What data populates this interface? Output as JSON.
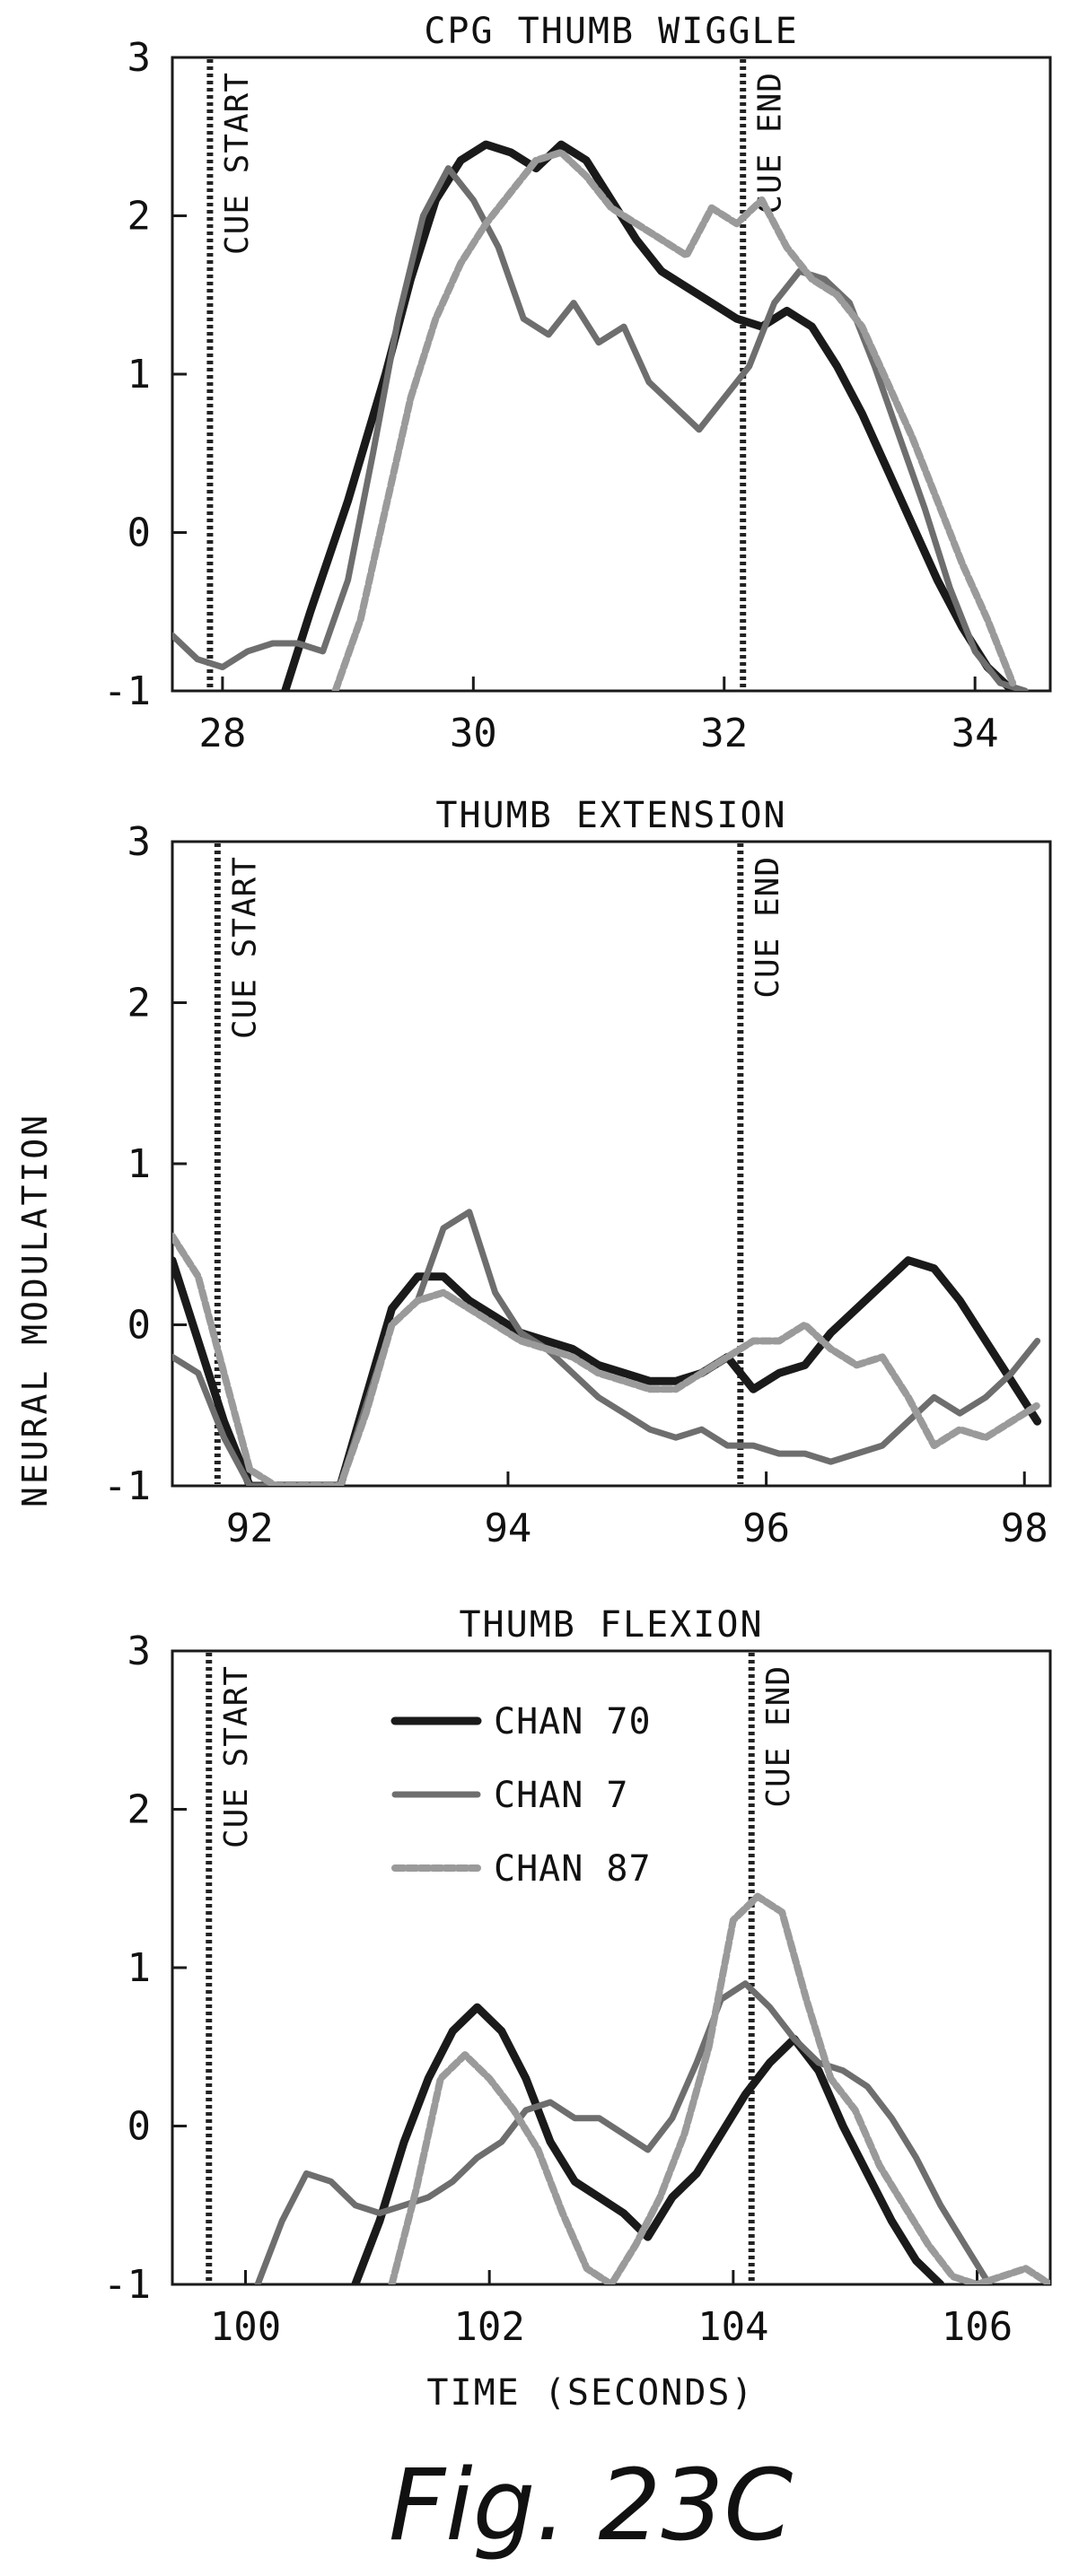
{
  "figure": {
    "caption": "Fig. 23C",
    "ylabel": "NEURAL MODULATION",
    "xlabel": "TIME (SECONDS)"
  },
  "legend": [
    {
      "name": "CHAN 70",
      "color": "#1a1a1a"
    },
    {
      "name": "CHAN 7",
      "color": "#6e6e6e"
    },
    {
      "name": "CHAN 87",
      "color": "#9a9a9a"
    }
  ],
  "chart_data": [
    {
      "type": "line",
      "title": "CPG THUMB WIGGLE",
      "xlim": [
        27.6,
        34.6
      ],
      "ylim": [
        -1,
        3
      ],
      "xticks": [
        28,
        30,
        32,
        34
      ],
      "yticks": [
        -1,
        0,
        1,
        2,
        3
      ],
      "cue_start": 27.9,
      "cue_end": 32.15,
      "cue_start_label": "CUE START",
      "cue_end_label": "CUE END",
      "series": [
        {
          "name": "CHAN 70",
          "color": "#1a1a1a",
          "x": [
            28.5,
            28.7,
            29.0,
            29.3,
            29.5,
            29.7,
            29.9,
            30.1,
            30.3,
            30.5,
            30.7,
            30.9,
            31.1,
            31.3,
            31.5,
            31.7,
            31.9,
            32.1,
            32.3,
            32.5,
            32.7,
            32.9,
            33.1,
            33.3,
            33.5,
            33.7,
            33.9,
            34.1,
            34.3
          ],
          "y": [
            -1,
            -0.5,
            0.2,
            1.0,
            1.6,
            2.1,
            2.35,
            2.45,
            2.4,
            2.3,
            2.45,
            2.35,
            2.1,
            1.85,
            1.65,
            1.55,
            1.45,
            1.35,
            1.3,
            1.4,
            1.3,
            1.05,
            0.75,
            0.4,
            0.05,
            -0.3,
            -0.6,
            -0.85,
            -1
          ]
        },
        {
          "name": "CHAN 7",
          "color": "#6e6e6e",
          "x": [
            27.6,
            27.8,
            28.0,
            28.2,
            28.4,
            28.6,
            28.8,
            29.0,
            29.2,
            29.4,
            29.6,
            29.8,
            30.0,
            30.2,
            30.4,
            30.6,
            30.8,
            31.0,
            31.2,
            31.4,
            31.6,
            31.8,
            32.0,
            32.2,
            32.4,
            32.6,
            32.8,
            33.0,
            33.2,
            33.4,
            33.6,
            33.8,
            34.0,
            34.2,
            34.4
          ],
          "y": [
            -0.65,
            -0.8,
            -0.85,
            -0.75,
            -0.7,
            -0.7,
            -0.75,
            -0.3,
            0.5,
            1.35,
            2.0,
            2.3,
            2.1,
            1.8,
            1.35,
            1.25,
            1.45,
            1.2,
            1.3,
            0.95,
            0.8,
            0.65,
            0.85,
            1.05,
            1.45,
            1.65,
            1.6,
            1.45,
            1.05,
            0.6,
            0.15,
            -0.35,
            -0.75,
            -0.95,
            -1
          ]
        },
        {
          "name": "CHAN 87",
          "color": "#9a9a9a",
          "x": [
            28.9,
            29.1,
            29.3,
            29.5,
            29.7,
            29.9,
            30.1,
            30.3,
            30.5,
            30.7,
            30.9,
            31.1,
            31.3,
            31.5,
            31.7,
            31.9,
            32.1,
            32.3,
            32.5,
            32.7,
            32.9,
            33.1,
            33.3,
            33.5,
            33.7,
            33.9,
            34.1,
            34.3
          ],
          "y": [
            -1,
            -0.55,
            0.15,
            0.85,
            1.35,
            1.7,
            1.95,
            2.15,
            2.35,
            2.4,
            2.25,
            2.05,
            1.95,
            1.85,
            1.75,
            2.05,
            1.95,
            2.1,
            1.8,
            1.6,
            1.5,
            1.3,
            0.95,
            0.6,
            0.2,
            -0.2,
            -0.55,
            -0.95
          ]
        }
      ]
    },
    {
      "type": "line",
      "title": "THUMB EXTENSION",
      "xlim": [
        91.4,
        98.2
      ],
      "ylim": [
        -1,
        3
      ],
      "xticks": [
        92,
        94,
        96,
        98
      ],
      "yticks": [
        -1,
        0,
        1,
        2,
        3
      ],
      "cue_start": 91.75,
      "cue_end": 95.8,
      "cue_start_label": "CUE START",
      "cue_end_label": "CUE END",
      "series": [
        {
          "name": "CHAN 70",
          "color": "#1a1a1a",
          "x": [
            91.4,
            91.6,
            91.8,
            92.0,
            92.7,
            92.9,
            93.1,
            93.3,
            93.5,
            93.7,
            93.9,
            94.1,
            94.3,
            94.5,
            94.7,
            94.9,
            95.1,
            95.3,
            95.5,
            95.7,
            95.9,
            96.1,
            96.3,
            96.5,
            96.7,
            96.9,
            97.1,
            97.3,
            97.5,
            97.7,
            97.9,
            98.1
          ],
          "y": [
            0.4,
            -0.1,
            -0.6,
            -1,
            -1,
            -0.45,
            0.1,
            0.3,
            0.3,
            0.15,
            0.05,
            -0.05,
            -0.1,
            -0.15,
            -0.25,
            -0.3,
            -0.35,
            -0.35,
            -0.3,
            -0.2,
            -0.4,
            -0.3,
            -0.25,
            -0.05,
            0.1,
            0.25,
            0.4,
            0.35,
            0.15,
            -0.1,
            -0.35,
            -0.6
          ]
        },
        {
          "name": "CHAN 7",
          "color": "#6e6e6e",
          "x": [
            91.4,
            91.6,
            91.8,
            92.0,
            92.7,
            92.9,
            93.1,
            93.3,
            93.5,
            93.7,
            93.9,
            94.1,
            94.3,
            94.5,
            94.7,
            94.9,
            95.1,
            95.3,
            95.5,
            95.7,
            95.9,
            96.1,
            96.3,
            96.5,
            96.7,
            96.9,
            97.1,
            97.3,
            97.5,
            97.7,
            97.9,
            98.1
          ],
          "y": [
            -0.2,
            -0.3,
            -0.7,
            -1,
            -1,
            -0.5,
            0.0,
            0.15,
            0.6,
            0.7,
            0.2,
            -0.05,
            -0.15,
            -0.3,
            -0.45,
            -0.55,
            -0.65,
            -0.7,
            -0.65,
            -0.75,
            -0.75,
            -0.8,
            -0.8,
            -0.85,
            -0.8,
            -0.75,
            -0.6,
            -0.45,
            -0.55,
            -0.45,
            -0.3,
            -0.1
          ]
        },
        {
          "name": "CHAN 87",
          "color": "#9a9a9a",
          "x": [
            91.4,
            91.6,
            91.8,
            92.0,
            92.2,
            92.7,
            92.9,
            93.1,
            93.3,
            93.5,
            93.7,
            93.9,
            94.1,
            94.3,
            94.5,
            94.7,
            94.9,
            95.1,
            95.3,
            95.5,
            95.7,
            95.9,
            96.1,
            96.3,
            96.5,
            96.7,
            96.9,
            97.1,
            97.3,
            97.5,
            97.7,
            97.9,
            98.1
          ],
          "y": [
            0.55,
            0.3,
            -0.3,
            -0.9,
            -1,
            -1,
            -0.55,
            0.0,
            0.15,
            0.2,
            0.1,
            0.0,
            -0.1,
            -0.15,
            -0.2,
            -0.3,
            -0.35,
            -0.4,
            -0.4,
            -0.3,
            -0.2,
            -0.1,
            -0.1,
            0.0,
            -0.15,
            -0.25,
            -0.2,
            -0.45,
            -0.75,
            -0.65,
            -0.7,
            -0.6,
            -0.5
          ]
        }
      ]
    },
    {
      "type": "line",
      "title": "THUMB FLEXION",
      "xlim": [
        99.4,
        106.6
      ],
      "ylim": [
        -1,
        3
      ],
      "xticks": [
        100,
        102,
        104,
        106
      ],
      "yticks": [
        -1,
        0,
        1,
        2,
        3
      ],
      "cue_start": 99.7,
      "cue_end": 104.15,
      "cue_start_label": "CUE START",
      "cue_end_label": "CUE END",
      "series": [
        {
          "name": "CHAN 70",
          "color": "#1a1a1a",
          "x": [
            100.9,
            101.1,
            101.3,
            101.5,
            101.7,
            101.9,
            102.1,
            102.3,
            102.5,
            102.7,
            102.9,
            103.1,
            103.3,
            103.5,
            103.7,
            103.9,
            104.1,
            104.3,
            104.5,
            104.7,
            104.9,
            105.1,
            105.3,
            105.5,
            105.7
          ],
          "y": [
            -1,
            -0.6,
            -0.1,
            0.3,
            0.6,
            0.75,
            0.6,
            0.3,
            -0.1,
            -0.35,
            -0.45,
            -0.55,
            -0.7,
            -0.45,
            -0.3,
            -0.05,
            0.2,
            0.4,
            0.55,
            0.35,
            0.0,
            -0.3,
            -0.6,
            -0.85,
            -1
          ]
        },
        {
          "name": "CHAN 7",
          "color": "#6e6e6e",
          "x": [
            100.1,
            100.3,
            100.5,
            100.7,
            100.9,
            101.1,
            101.3,
            101.5,
            101.7,
            101.9,
            102.1,
            102.3,
            102.5,
            102.7,
            102.9,
            103.1,
            103.3,
            103.5,
            103.7,
            103.9,
            104.1,
            104.3,
            104.5,
            104.7,
            104.9,
            105.1,
            105.3,
            105.5,
            105.7,
            105.9,
            106.1
          ],
          "y": [
            -1,
            -0.6,
            -0.3,
            -0.35,
            -0.5,
            -0.55,
            -0.5,
            -0.45,
            -0.35,
            -0.2,
            -0.1,
            0.1,
            0.15,
            0.05,
            0.05,
            -0.05,
            -0.15,
            0.05,
            0.4,
            0.8,
            0.9,
            0.75,
            0.55,
            0.4,
            0.35,
            0.25,
            0.05,
            -0.2,
            -0.5,
            -0.75,
            -1
          ]
        },
        {
          "name": "CHAN 87",
          "color": "#9a9a9a",
          "x": [
            101.2,
            101.4,
            101.6,
            101.8,
            102.0,
            102.2,
            102.4,
            102.6,
            102.8,
            103.0,
            103.2,
            103.4,
            103.6,
            103.8,
            104.0,
            104.2,
            104.4,
            104.6,
            104.8,
            105.0,
            105.2,
            105.4,
            105.6,
            105.8,
            106.0,
            106.2,
            106.4,
            106.6
          ],
          "y": [
            -1,
            -0.4,
            0.3,
            0.45,
            0.3,
            0.1,
            -0.15,
            -0.55,
            -0.9,
            -1,
            -0.75,
            -0.45,
            -0.05,
            0.5,
            1.3,
            1.45,
            1.35,
            0.8,
            0.3,
            0.1,
            -0.25,
            -0.5,
            -0.75,
            -0.95,
            -1,
            -0.95,
            -0.9,
            -1
          ]
        }
      ]
    }
  ]
}
